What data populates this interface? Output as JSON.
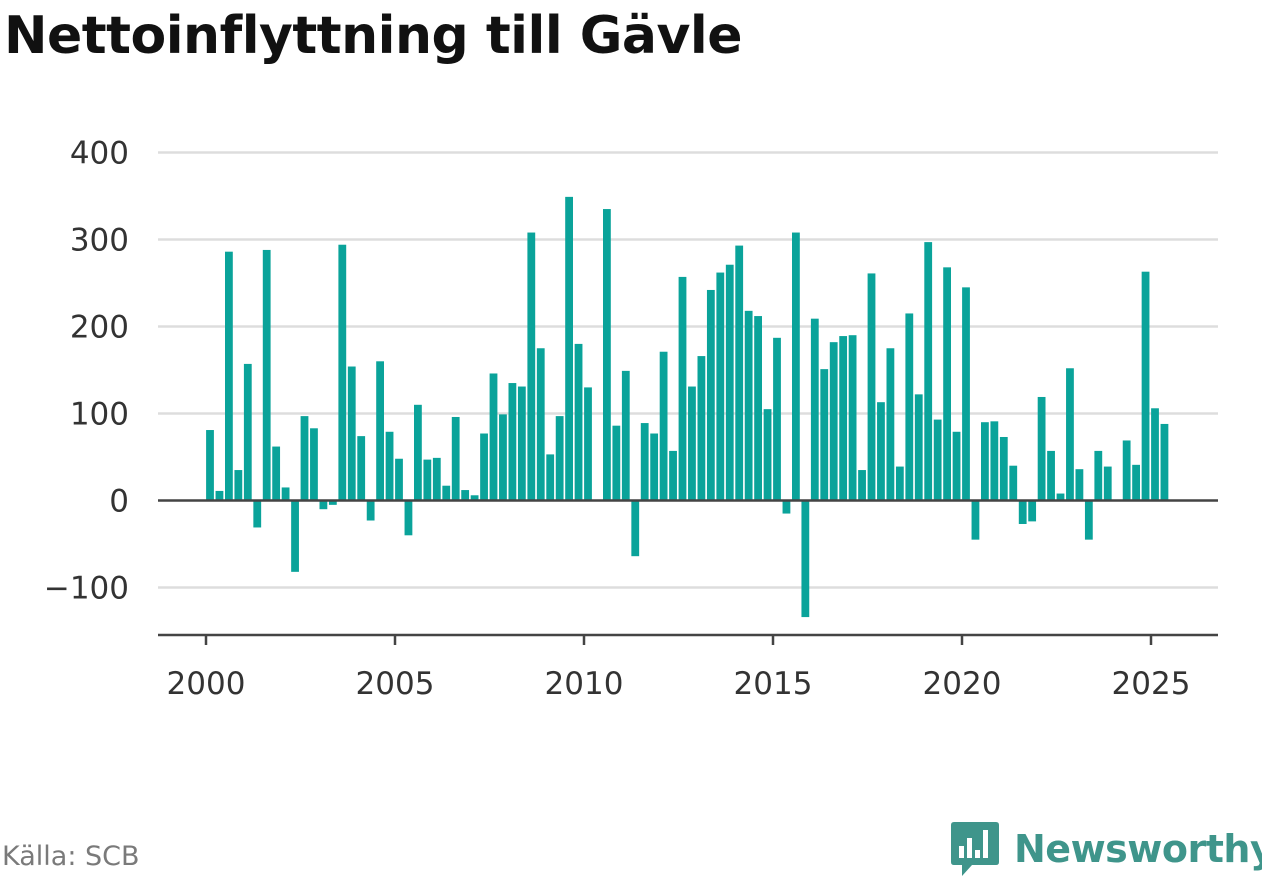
{
  "title": "Nettoinflyttning till Gävle",
  "source": "Källa: SCB",
  "brand": {
    "name": "Newsworthy",
    "icon": "newsworthy-logo-icon",
    "color": "#3f958b"
  },
  "colors": {
    "bar": "#0aa39a",
    "grid": "#dddddd",
    "axis": "#444444",
    "tick": "#333333"
  },
  "chart_data": {
    "type": "bar",
    "title": "Nettoinflyttning till Gävle",
    "xlabel": "",
    "ylabel": "",
    "x_start": 2000.0,
    "x_step": 0.25,
    "xticks": [
      "2000",
      "2005",
      "2010",
      "2015",
      "2020",
      "2025"
    ],
    "yticks": [
      "400",
      "300",
      "200",
      "100",
      "0",
      "−100"
    ],
    "ylim": [
      -150,
      400
    ],
    "grid": true,
    "values": [
      81,
      11,
      286,
      35,
      157,
      -31,
      288,
      62,
      15,
      -82,
      97,
      83,
      -10,
      -5,
      294,
      154,
      74,
      -23,
      160,
      79,
      48,
      -40,
      110,
      47,
      49,
      17,
      96,
      12,
      6,
      77,
      146,
      99,
      135,
      131,
      308,
      175,
      53,
      97,
      349,
      180,
      130,
      0,
      335,
      86,
      149,
      -64,
      89,
      77,
      171,
      57,
      257,
      131,
      166,
      242,
      262,
      271,
      293,
      218,
      212,
      105,
      187,
      -15,
      308,
      -134,
      209,
      151,
      182,
      189,
      190,
      35,
      261,
      113,
      175,
      39,
      215,
      122,
      297,
      93,
      268,
      79,
      245,
      -45,
      90,
      91,
      73,
      40,
      -27,
      -24,
      119,
      57,
      8,
      152,
      36,
      -45,
      57,
      39,
      0,
      69,
      41,
      263,
      106,
      88
    ]
  }
}
